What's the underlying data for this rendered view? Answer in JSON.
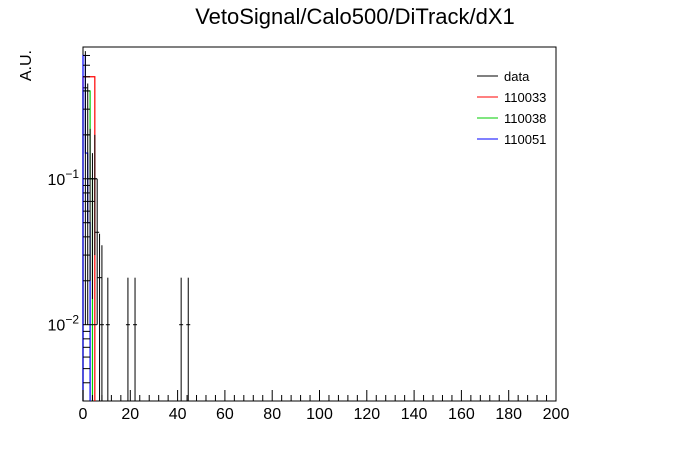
{
  "chart_data": {
    "type": "histogram",
    "title": "VetoSignal/Calo500/DiTrack/dX1",
    "ylabel": "A.U.",
    "xlabel": "",
    "xlim": [
      0,
      200
    ],
    "ylim": [
      0.003,
      0.8
    ],
    "yscale": "log",
    "x_major_ticks": [
      0,
      20,
      40,
      60,
      80,
      100,
      120,
      140,
      160,
      180,
      200
    ],
    "x_tick_labels": [
      "0",
      "20",
      "40",
      "60",
      "80",
      "100",
      "120",
      "140",
      "160",
      "180",
      "200"
    ],
    "y_tick_labels": [
      {
        "value": 0.1,
        "base": "10",
        "exp": "−1"
      },
      {
        "value": 0.01,
        "base": "10",
        "exp": "−2"
      }
    ],
    "legend_position": "top-right",
    "series": [
      {
        "name": "data",
        "color": "#000000",
        "style": "points-with-errors",
        "points": [
          {
            "x": 1.0,
            "y": 0.42,
            "lo": 0.01,
            "hi": 0.75
          },
          {
            "x": 2.0,
            "y": 0.2,
            "lo": 0.01,
            "hi": 0.45
          },
          {
            "x": 3.0,
            "y": 0.1,
            "lo": 0.02,
            "hi": 0.22
          },
          {
            "x": 4.0,
            "y": 0.07,
            "lo": 0.015,
            "hi": 0.15
          },
          {
            "x": 5.0,
            "y": 0.1,
            "lo": 0.03,
            "hi": 0.2
          },
          {
            "x": 6.0,
            "y": 0.043,
            "lo": 0.01,
            "hi": 0.1
          },
          {
            "x": 7.0,
            "y": 0.021,
            "lo": 0.003,
            "hi": 0.042
          },
          {
            "x": 8.0,
            "y": 0.01,
            "lo": 0.003,
            "hi": 0.035
          },
          {
            "x": 10.5,
            "y": 0.01,
            "lo": 0.003,
            "hi": 0.021
          },
          {
            "x": 19.0,
            "y": 0.01,
            "lo": 0.003,
            "hi": 0.021
          },
          {
            "x": 22.0,
            "y": 0.01,
            "lo": 0.003,
            "hi": 0.021
          },
          {
            "x": 41.5,
            "y": 0.01,
            "lo": 0.003,
            "hi": 0.021
          },
          {
            "x": 44.5,
            "y": 0.01,
            "lo": 0.003,
            "hi": 0.021
          }
        ]
      },
      {
        "name": "110033",
        "color": "#ff0000",
        "style": "step",
        "bins": [
          {
            "x0": 0,
            "x1": 2,
            "y": 0.5
          },
          {
            "x0": 2,
            "x1": 4,
            "y": 0.5
          },
          {
            "x0": 4,
            "x1": 5,
            "y": 0.5
          }
        ]
      },
      {
        "name": "110038",
        "color": "#00cc00",
        "style": "step",
        "bins": [
          {
            "x0": 0,
            "x1": 1,
            "y": 0.4
          },
          {
            "x0": 1,
            "x1": 2,
            "y": 0.4
          },
          {
            "x0": 2,
            "x1": 3,
            "y": 0.4
          },
          {
            "x0": 3,
            "x1": 4,
            "y": 0.1
          }
        ]
      },
      {
        "name": "110051",
        "color": "#0000ff",
        "style": "step",
        "bins": [
          {
            "x0": 0,
            "x1": 1,
            "y": 0.7
          },
          {
            "x0": 1,
            "x1": 2,
            "y": 0.15
          },
          {
            "x0": 2,
            "x1": 3,
            "y": 0.05
          }
        ]
      }
    ]
  }
}
